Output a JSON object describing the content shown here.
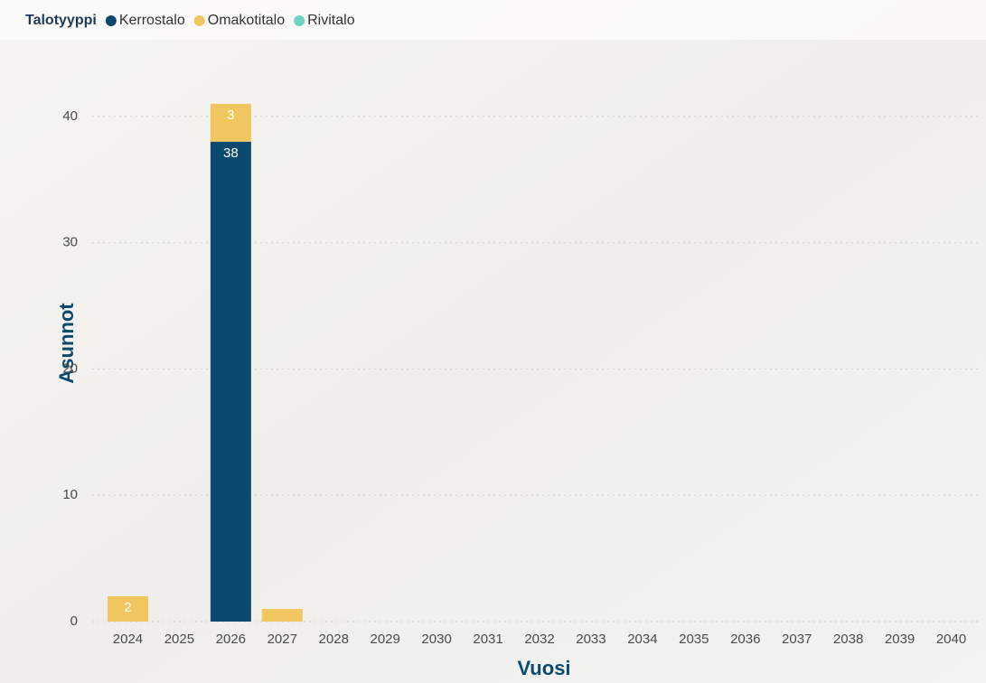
{
  "chart_data": {
    "type": "stacked-bar",
    "legend_title": "Talotyyppi",
    "x_label": "Vuosi",
    "y_label": "Asunnot",
    "categories": [
      "2024",
      "2025",
      "2026",
      "2027",
      "2028",
      "2029",
      "2030",
      "2031",
      "2032",
      "2033",
      "2034",
      "2035",
      "2036",
      "2037",
      "2038",
      "2039",
      "2040"
    ],
    "series": [
      {
        "name": "Kerrostalo",
        "color": "#0b4a6e",
        "values": [
          null,
          null,
          38,
          null,
          null,
          null,
          null,
          null,
          null,
          null,
          null,
          null,
          null,
          null,
          null,
          null,
          null
        ]
      },
      {
        "name": "Omakotitalo",
        "color": "#f0c75e",
        "values": [
          2,
          null,
          3,
          1,
          null,
          null,
          null,
          null,
          null,
          null,
          null,
          null,
          null,
          null,
          null,
          null,
          null
        ]
      },
      {
        "name": "Rivitalo",
        "color": "#6fd3c4",
        "values": [
          null,
          null,
          null,
          null,
          null,
          null,
          null,
          null,
          null,
          null,
          null,
          null,
          null,
          null,
          null,
          null,
          null
        ]
      }
    ],
    "ylim": [
      0,
      46
    ],
    "yticks": [
      0,
      10,
      20,
      30,
      40
    ],
    "grid": true,
    "legend": "top-left"
  }
}
